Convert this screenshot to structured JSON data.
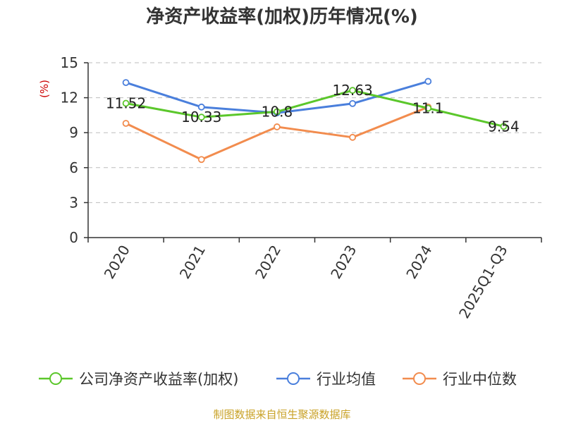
{
  "chart_data": {
    "type": "line",
    "title": "净资产收益率(加权)历年情况(%)",
    "ylabel": "(%)",
    "xlabel": "",
    "categories": [
      "2020",
      "2021",
      "2022",
      "2023",
      "2024",
      "2025Q1-Q3"
    ],
    "ylim": [
      0,
      15
    ],
    "yticks": [
      0,
      3,
      6,
      9,
      12,
      15
    ],
    "grid": true,
    "legend_position": "bottom",
    "series": [
      {
        "name": "公司净资产收益率(加权)",
        "color": "#5bc72b",
        "values": [
          11.52,
          10.33,
          10.8,
          12.63,
          11.1,
          9.54
        ],
        "data_labels": [
          "11.52",
          "10.33",
          "10.8",
          "12.63",
          "11.1",
          "9.54"
        ]
      },
      {
        "name": "行业均值",
        "color": "#4a7fdc",
        "values": [
          13.3,
          11.2,
          10.7,
          11.5,
          13.4,
          null
        ]
      },
      {
        "name": "行业中位数",
        "color": "#f28c4e",
        "values": [
          9.8,
          6.7,
          9.5,
          8.6,
          11.2,
          null
        ]
      }
    ]
  },
  "footer": {
    "source": "制图数据来自恒生聚源数据库"
  }
}
